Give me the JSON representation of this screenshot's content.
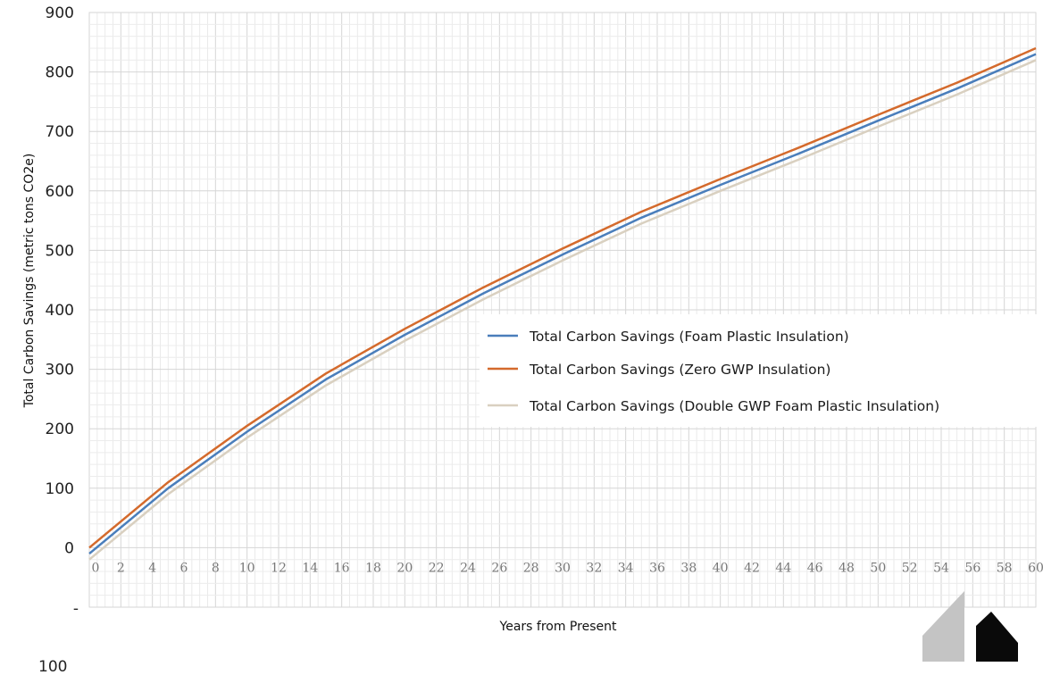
{
  "chart_data": {
    "type": "line",
    "title": "",
    "xlabel": "Years from Present",
    "ylabel": "Total Carbon Savings (metric tons CO2e)",
    "xlim": [
      0,
      60
    ],
    "ylim": [
      -100,
      900
    ],
    "y_ticks": [
      900,
      800,
      700,
      600,
      500,
      400,
      300,
      200,
      100,
      0
    ],
    "y_tick_labels": [
      "900",
      "800",
      "700",
      "600",
      "500",
      "400",
      "300",
      "200",
      "100",
      "0"
    ],
    "y_extra_labels": {
      "dash": "-",
      "below_100": "100"
    },
    "x_tick_labels": [
      "0",
      "2",
      "4",
      "6",
      "8",
      "10",
      "12",
      "14",
      "16",
      "18",
      "20",
      "22",
      "24",
      "26",
      "28",
      "30",
      "32",
      "34",
      "36",
      "38",
      "40",
      "42",
      "44",
      "46",
      "48",
      "50",
      "52",
      "54",
      "56",
      "58",
      "60"
    ],
    "grid": true,
    "legend_position": "center-right",
    "series": [
      {
        "name": "Total Carbon Savings (Foam Plastic Insulation)",
        "color": "#4a7ebb",
        "x": [
          0,
          5,
          10,
          15,
          20,
          25,
          30,
          35,
          40,
          45,
          50,
          55,
          60
        ],
        "y": [
          -10,
          100,
          195,
          283,
          358,
          428,
          493,
          555,
          610,
          663,
          718,
          772,
          830
        ]
      },
      {
        "name": "Total Carbon Savings (Zero GWP Insulation)",
        "color": "#d46a2c",
        "x": [
          0,
          5,
          10,
          15,
          20,
          25,
          30,
          35,
          40,
          45,
          50,
          55,
          60
        ],
        "y": [
          0,
          110,
          205,
          293,
          368,
          438,
          503,
          565,
          620,
          673,
          728,
          782,
          840
        ]
      },
      {
        "name": "Total Carbon Savings (Double GWP Foam Plastic Insulation)",
        "color": "#d9d0c0",
        "x": [
          0,
          5,
          10,
          15,
          20,
          25,
          30,
          35,
          40,
          45,
          50,
          55,
          60
        ],
        "y": [
          -20,
          90,
          185,
          273,
          348,
          418,
          483,
          545,
          600,
          653,
          708,
          762,
          820
        ]
      }
    ]
  },
  "logo": {
    "name": "corner-logo"
  }
}
